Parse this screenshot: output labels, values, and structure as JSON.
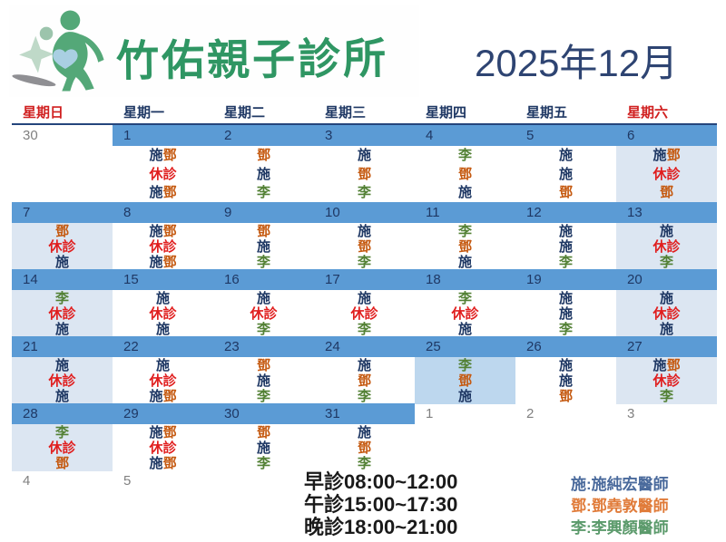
{
  "header": {
    "clinic_name": "竹佑親子診所",
    "month_title": "2025年12月"
  },
  "calendar": {
    "weekdays": [
      {
        "label": "星期日",
        "weekend": true
      },
      {
        "label": "星期一",
        "weekend": false
      },
      {
        "label": "星期二",
        "weekend": false
      },
      {
        "label": "星期三",
        "weekend": false
      },
      {
        "label": "星期四",
        "weekend": false
      },
      {
        "label": "星期五",
        "weekend": false
      },
      {
        "label": "星期六",
        "weekend": true
      }
    ],
    "weeks": [
      {
        "cells": [
          {
            "num": "30",
            "out": true,
            "lines": []
          },
          {
            "num": "1",
            "lines": [
              "施鄧",
              "休診",
              "施鄧"
            ]
          },
          {
            "num": "2",
            "lines": [
              "鄧",
              "施",
              "李"
            ]
          },
          {
            "num": "3",
            "lines": [
              "施",
              "鄧",
              "李"
            ]
          },
          {
            "num": "4",
            "lines": [
              "李",
              "鄧",
              "施"
            ]
          },
          {
            "num": "5",
            "lines": [
              "施",
              "施",
              "鄧"
            ]
          },
          {
            "num": "6",
            "bg": "weekend",
            "lines": [
              "施鄧",
              "休診",
              "鄧"
            ]
          }
        ]
      },
      {
        "cells": [
          {
            "num": "7",
            "bg": "weekend",
            "lines": [
              "鄧",
              "休診",
              "施"
            ]
          },
          {
            "num": "8",
            "lines": [
              "施鄧",
              "休診",
              "施鄧"
            ]
          },
          {
            "num": "9",
            "lines": [
              "鄧",
              "施",
              "李"
            ]
          },
          {
            "num": "10",
            "lines": [
              "施",
              "鄧",
              "李"
            ]
          },
          {
            "num": "11",
            "lines": [
              "李",
              "鄧",
              "施"
            ]
          },
          {
            "num": "12",
            "lines": [
              "施",
              "施",
              "李"
            ]
          },
          {
            "num": "13",
            "bg": "weekend",
            "lines": [
              "施",
              "休診",
              "李"
            ]
          }
        ]
      },
      {
        "cells": [
          {
            "num": "14",
            "bg": "weekend",
            "lines": [
              "李",
              "休診",
              "施"
            ]
          },
          {
            "num": "15",
            "lines": [
              "施",
              "休診",
              "施"
            ]
          },
          {
            "num": "16",
            "lines": [
              "施",
              "休診",
              "李"
            ]
          },
          {
            "num": "17",
            "lines": [
              "施",
              "休診",
              "李"
            ]
          },
          {
            "num": "18",
            "lines": [
              "李",
              "休診",
              "施"
            ]
          },
          {
            "num": "19",
            "lines": [
              "施",
              "施",
              "李"
            ]
          },
          {
            "num": "20",
            "bg": "weekend",
            "lines": [
              "施",
              "休診",
              "施"
            ]
          }
        ]
      },
      {
        "cells": [
          {
            "num": "21",
            "bg": "weekend",
            "lines": [
              "施",
              "休診",
              "施"
            ]
          },
          {
            "num": "22",
            "lines": [
              "施",
              "休診",
              "施鄧"
            ]
          },
          {
            "num": "23",
            "lines": [
              "鄧",
              "施",
              "李"
            ]
          },
          {
            "num": "24",
            "lines": [
              "施",
              "鄧",
              "李"
            ]
          },
          {
            "num": "25",
            "bg": "holiday",
            "lines": [
              "李",
              "鄧",
              "施"
            ]
          },
          {
            "num": "26",
            "lines": [
              "施",
              "施",
              "鄧"
            ]
          },
          {
            "num": "27",
            "bg": "weekend",
            "lines": [
              "施鄧",
              "休診",
              "李"
            ]
          }
        ]
      },
      {
        "cells": [
          {
            "num": "28",
            "bg": "weekend",
            "lines": [
              "李",
              "休診",
              "鄧"
            ]
          },
          {
            "num": "29",
            "lines": [
              "施鄧",
              "休診",
              "施鄧"
            ]
          },
          {
            "num": "30",
            "lines": [
              "鄧",
              "施",
              "李"
            ]
          },
          {
            "num": "31",
            "lines": [
              "施",
              "鄧",
              "李"
            ]
          },
          {
            "num": "1",
            "out": true,
            "lines": []
          },
          {
            "num": "2",
            "out": true,
            "lines": []
          },
          {
            "num": "3",
            "out": true,
            "lines": []
          }
        ]
      },
      {
        "cells": [
          {
            "num": "4",
            "out": true,
            "lines": []
          },
          {
            "num": "5",
            "out": true,
            "lines": []
          },
          {
            "num": "",
            "out": true,
            "lines": []
          },
          {
            "num": "",
            "out": true,
            "lines": []
          },
          {
            "num": "",
            "out": true,
            "lines": []
          },
          {
            "num": "",
            "out": true,
            "lines": []
          },
          {
            "num": "",
            "out": true,
            "lines": []
          }
        ]
      }
    ],
    "colors": {
      "施": "#1f3864",
      "鄧": "#c55a11",
      "李": "#538135",
      "休診": "#e01e1e",
      "band": "#5b9bd5",
      "weekend_bg": "#dce6f2",
      "holiday_bg": "#bdd7ee",
      "weekend_header": "#d02020",
      "header_text": "#1f3864",
      "out_month_num": "#808080"
    }
  },
  "footer": {
    "times": [
      "早診08:00~12:00",
      "午診15:00~17:30",
      "晚診18:00~21:00"
    ],
    "doctors": [
      {
        "label": "施:施純宏醫師",
        "color": "#4a6a9c"
      },
      {
        "label": "鄧:鄧堯敦醫師",
        "color": "#e07b39"
      },
      {
        "label": "李:李興顏醫師",
        "color": "#5b9a6b"
      }
    ]
  }
}
